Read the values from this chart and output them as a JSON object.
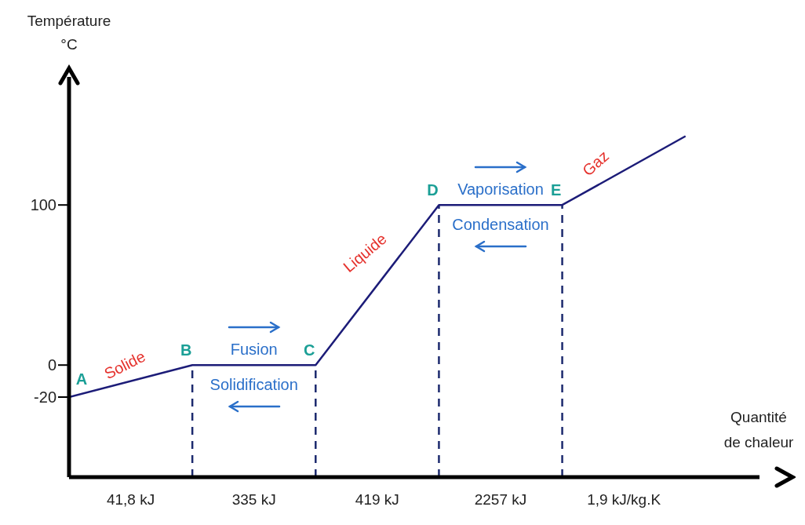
{
  "chart_data": {
    "type": "line",
    "xlabel": "Quantité\nde chaleur",
    "ylabel": "Température\n°C",
    "categories": [
      "A",
      "B",
      "C",
      "D",
      "E",
      null
    ],
    "series": [
      {
        "color": "#1c1c78",
        "values": [
          -20,
          0,
          0,
          100,
          100,
          143
        ]
      }
    ],
    "ylim": [
      -70,
      180
    ],
    "yticks": [
      -20,
      0,
      100
    ],
    "ref_lines": [
      {
        "axis": "x",
        "value": "B",
        "line_style": "dashed",
        "color": "#1c2a6e"
      },
      {
        "axis": "x",
        "value": "C",
        "line_style": "dashed",
        "color": "#1c2a6e"
      },
      {
        "axis": "x",
        "value": "D",
        "line_style": "dashed",
        "color": "#1c2a6e"
      },
      {
        "axis": "x",
        "value": "E",
        "line_style": "dashed",
        "color": "#1c2a6e"
      }
    ],
    "annotations": [
      "Solide",
      "Fusion",
      "Solidification",
      "Liquide",
      "Vaporisation",
      "Condensation",
      "Gaz",
      "41,8 kJ",
      "335 kJ",
      "419 kJ",
      "2257 kJ",
      "1,9 kJ/kg.K"
    ],
    "grid": false,
    "legend": false,
    "marker": "none",
    "line_style": "solid"
  }
}
